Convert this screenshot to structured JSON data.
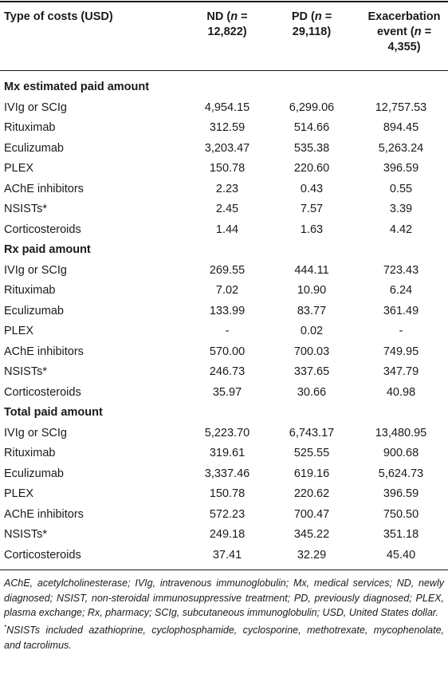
{
  "header": {
    "col0": "Type of costs (USD)",
    "col1": {
      "line1_pre": "ND (",
      "n": "n",
      "line1_post": " =",
      "line2": "12,822)"
    },
    "col2": {
      "line1_pre": "PD (",
      "n": "n",
      "line1_post": " =",
      "line2": "29,118)"
    },
    "col3": {
      "line1": "Exacerbation",
      "line2_pre": "event (",
      "n": "n",
      "line2_post": " =",
      "line3": "4,355)"
    }
  },
  "rows": [
    {
      "type": "section",
      "label": "Mx estimated paid amount"
    },
    {
      "type": "data",
      "label": "IVIg or SCIg",
      "nd": "4,954.15",
      "pd": "6,299.06",
      "ex": "12,757.53"
    },
    {
      "type": "data",
      "label": "Rituximab",
      "nd": "312.59",
      "pd": "514.66",
      "ex": "894.45"
    },
    {
      "type": "data",
      "label": "Eculizumab",
      "nd": "3,203.47",
      "pd": "535.38",
      "ex": "5,263.24"
    },
    {
      "type": "data",
      "label": "PLEX",
      "nd": "150.78",
      "pd": "220.60",
      "ex": "396.59"
    },
    {
      "type": "data",
      "label": "AChE inhibitors",
      "nd": "2.23",
      "pd": "0.43",
      "ex": "0.55"
    },
    {
      "type": "data",
      "label": "NSISTs*",
      "nd": "2.45",
      "pd": "7.57",
      "ex": "3.39"
    },
    {
      "type": "data",
      "label": "Corticosteroids",
      "nd": "1.44",
      "pd": "1.63",
      "ex": "4.42"
    },
    {
      "type": "section",
      "label": "Rx paid amount"
    },
    {
      "type": "data",
      "label": "IVIg or SCIg",
      "nd": "269.55",
      "pd": "444.11",
      "ex": "723.43"
    },
    {
      "type": "data",
      "label": "Rituximab",
      "nd": "7.02",
      "pd": "10.90",
      "ex": "6.24"
    },
    {
      "type": "data",
      "label": "Eculizumab",
      "nd": "133.99",
      "pd": "83.77",
      "ex": "361.49"
    },
    {
      "type": "data",
      "label": "PLEX",
      "nd": "-",
      "pd": "0.02",
      "ex": "-"
    },
    {
      "type": "data",
      "label": "AChE inhibitors",
      "nd": "570.00",
      "pd": "700.03",
      "ex": "749.95"
    },
    {
      "type": "data",
      "label": "NSISTs*",
      "nd": "246.73",
      "pd": "337.65",
      "ex": "347.79"
    },
    {
      "type": "data",
      "label": "Corticosteroids",
      "nd": "35.97",
      "pd": "30.66",
      "ex": "40.98"
    },
    {
      "type": "section",
      "label": "Total paid amount"
    },
    {
      "type": "data",
      "label": "IVIg or SCIg",
      "nd": "5,223.70",
      "pd": "6,743.17",
      "ex": "13,480.95"
    },
    {
      "type": "data",
      "label": "Rituximab",
      "nd": "319.61",
      "pd": "525.55",
      "ex": "900.68"
    },
    {
      "type": "data",
      "label": "Eculizumab",
      "nd": "3,337.46",
      "pd": "619.16",
      "ex": "5,624.73"
    },
    {
      "type": "data",
      "label": "PLEX",
      "nd": "150.78",
      "pd": "220.62",
      "ex": "396.59"
    },
    {
      "type": "data",
      "label": "AChE inhibitors",
      "nd": "572.23",
      "pd": "700.47",
      "ex": "750.50"
    },
    {
      "type": "data",
      "label": "NSISTs*",
      "nd": "249.18",
      "pd": "345.22",
      "ex": "351.18"
    },
    {
      "type": "data",
      "label": "Corticosteroids",
      "nd": "37.41",
      "pd": "32.29",
      "ex": "45.40"
    }
  ],
  "footnotes": {
    "abbreviations": "AChE, acetylcholinesterase; IVIg, intravenous immunoglobulin; Mx, medical services; ND, newly diagnosed; NSIST, non-steroidal immunosuppressive treatment; PD, previously diagnosed; PLEX, plasma exchange; Rx, pharmacy; SCIg, subcutaneous immunoglobulin; USD, United States dollar.",
    "nsist_marker": "*",
    "nsist_note": "NSISTs included azathioprine, cyclophosphamide, cyclosporine, methotrexate, mycophenolate, and tacrolimus."
  }
}
